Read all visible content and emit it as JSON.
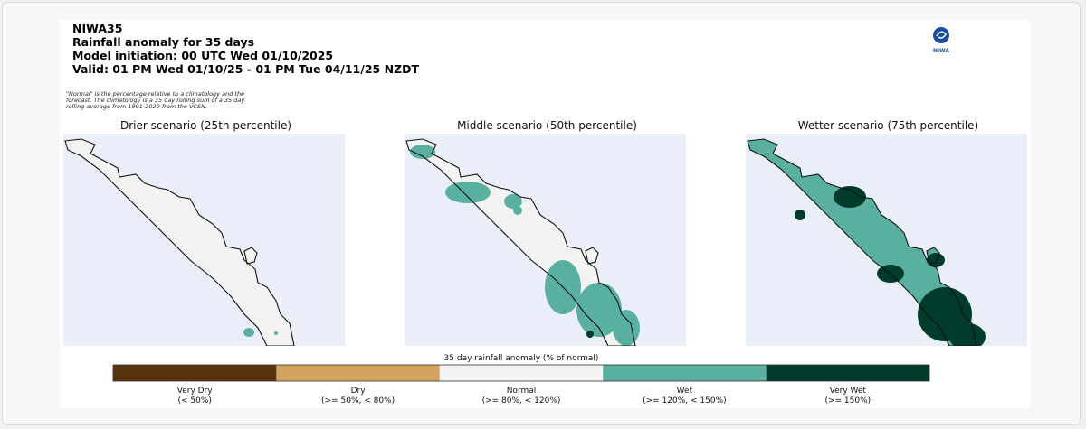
{
  "header": {
    "lines": [
      "NIWA35",
      "Rainfall anomaly for 35 days",
      "Model initiation: 00 UTC Wed 01/10/2025",
      "Valid: 01 PM Wed 01/10/25 - 01 PM Tue 04/11/25 NZDT"
    ],
    "logo": "NIWA"
  },
  "note": {
    "lines": [
      "\"Normal\" is the percentage relative to a climatology and the",
      "forecast. The climatology is a 35 day rolling sum of a 35 day",
      "rolling average from 1991-2020 from the VCSN."
    ]
  },
  "panels": [
    {
      "title": "Drier scenario (25th percentile)"
    },
    {
      "title": "Middle scenario (50th percentile)"
    },
    {
      "title": "Wetter scenario (75th percentile)"
    }
  ],
  "legend": {
    "title": "35 day rainfall anomaly (% of normal)",
    "items": [
      {
        "name": "Very Dry",
        "range": "(< 50%)",
        "color": "#5a330f"
      },
      {
        "name": "Dry",
        "range": "(>= 50%, < 80%)",
        "color": "#d3a35e"
      },
      {
        "name": "Normal",
        "range": "(>= 80%, < 120%)",
        "color": "#f3f3f1"
      },
      {
        "name": "Wet",
        "range": "(>= 120%, < 150%)",
        "color": "#5ab0a0"
      },
      {
        "name": "Very Wet",
        "range": "(>= 150%)",
        "color": "#003b2b"
      }
    ]
  }
}
